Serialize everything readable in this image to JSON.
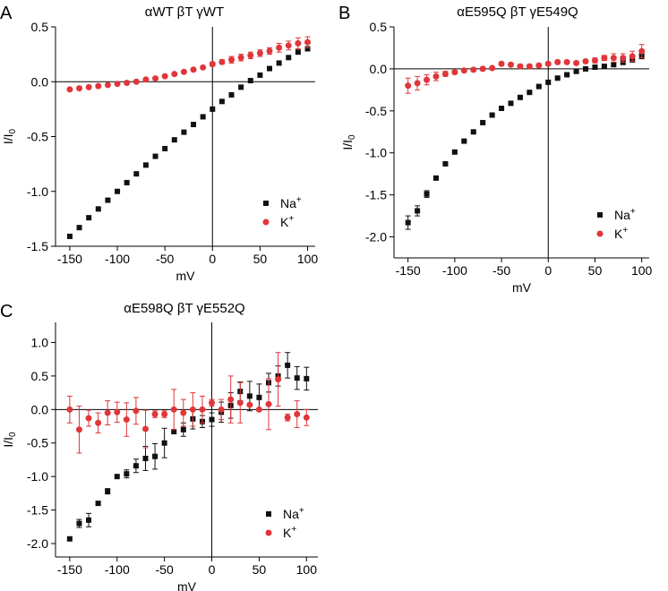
{
  "colors": {
    "na": "#111111",
    "k": "#e0363a",
    "axis": "#000000"
  },
  "chart_data": [
    {
      "panel_label": "A",
      "type": "scatter",
      "title": "αWT βT γWT",
      "xlabel": "mV",
      "ylabel_main": "I/I",
      "ylabel_sub": "0",
      "xlim": [
        -165,
        108
      ],
      "ylim": [
        -1.5,
        0.5
      ],
      "xticks": [
        -150,
        -100,
        -50,
        0,
        50,
        100
      ],
      "yticks": [
        -1.5,
        -1.0,
        -0.5,
        0.0,
        0.5
      ],
      "ytick_labels": [
        "-1.5",
        "-1.0",
        "-0.5",
        "0.0",
        "0.5"
      ],
      "legend_position": "bottom-right",
      "series": [
        {
          "name": "Na",
          "name_sup": "+",
          "marker": "square",
          "x": [
            -150,
            -140,
            -130,
            -120,
            -110,
            -100,
            -90,
            -80,
            -70,
            -60,
            -50,
            -40,
            -30,
            -20,
            -10,
            0,
            10,
            20,
            30,
            40,
            50,
            60,
            70,
            80,
            90,
            100
          ],
          "y": [
            -1.41,
            -1.33,
            -1.24,
            -1.16,
            -1.08,
            -1.0,
            -0.92,
            -0.84,
            -0.76,
            -0.68,
            -0.61,
            -0.53,
            -0.46,
            -0.39,
            -0.32,
            -0.25,
            -0.18,
            -0.12,
            -0.05,
            0.01,
            0.06,
            0.12,
            0.17,
            0.22,
            0.27,
            0.3
          ],
          "err": [
            0,
            0,
            0,
            0,
            0,
            0,
            0,
            0,
            0,
            0,
            0,
            0,
            0,
            0,
            0,
            0,
            0,
            0,
            0,
            0,
            0,
            0,
            0,
            0,
            0,
            0
          ]
        },
        {
          "name": "K",
          "name_sup": "+",
          "marker": "circle",
          "x": [
            -150,
            -140,
            -130,
            -120,
            -110,
            -100,
            -90,
            -80,
            -70,
            -60,
            -50,
            -40,
            -30,
            -20,
            -10,
            0,
            10,
            20,
            30,
            40,
            50,
            60,
            70,
            80,
            90,
            100
          ],
          "y": [
            -0.07,
            -0.06,
            -0.05,
            -0.04,
            -0.03,
            -0.02,
            -0.01,
            0.0,
            0.02,
            0.03,
            0.05,
            0.07,
            0.09,
            0.11,
            0.13,
            0.16,
            0.18,
            0.2,
            0.22,
            0.24,
            0.26,
            0.28,
            0.31,
            0.33,
            0.35,
            0.36
          ],
          "err": [
            0,
            0,
            0,
            0,
            0,
            0,
            0,
            0,
            0,
            0,
            0,
            0,
            0,
            0,
            0,
            0.02,
            0.02,
            0.03,
            0.03,
            0.03,
            0.03,
            0.03,
            0.04,
            0.04,
            0.05,
            0.05
          ]
        }
      ]
    },
    {
      "panel_label": "B",
      "type": "scatter",
      "title": "αE595Q βT γE549Q",
      "xlabel": "mV",
      "ylabel_main": "I/I",
      "ylabel_sub": "0",
      "xlim": [
        -165,
        108
      ],
      "ylim": [
        -2.25,
        0.5
      ],
      "xticks": [
        -150,
        -100,
        -50,
        0,
        50,
        100
      ],
      "yticks": [
        -2.0,
        -1.5,
        -1.0,
        -0.5,
        0.0,
        0.5
      ],
      "ytick_labels": [
        "-2.0",
        "-1.5",
        "-1.0",
        "-0.5",
        "0.0",
        "0.5"
      ],
      "legend_position": "bottom-right",
      "series": [
        {
          "name": "Na",
          "name_sup": "+",
          "marker": "square",
          "x": [
            -150,
            -140,
            -130,
            -120,
            -110,
            -100,
            -90,
            -80,
            -70,
            -60,
            -50,
            -40,
            -30,
            -20,
            -10,
            0,
            10,
            20,
            30,
            40,
            50,
            60,
            70,
            80,
            90,
            100
          ],
          "y": [
            -1.83,
            -1.69,
            -1.49,
            -1.3,
            -1.13,
            -0.99,
            -0.86,
            -0.75,
            -0.64,
            -0.55,
            -0.47,
            -0.41,
            -0.34,
            -0.28,
            -0.21,
            -0.16,
            -0.11,
            -0.07,
            -0.03,
            0.0,
            0.02,
            0.03,
            0.05,
            0.08,
            0.11,
            0.15
          ],
          "err": [
            0.08,
            0.06,
            0.04,
            0.02,
            0.01,
            0.01,
            0.01,
            0.01,
            0.01,
            0.01,
            0.01,
            0.01,
            0.01,
            0.01,
            0.01,
            0.02,
            0.01,
            0.01,
            0.01,
            0.01,
            0.01,
            0.01,
            0.02,
            0.03,
            0.03,
            0.03
          ]
        },
        {
          "name": "K",
          "name_sup": "+",
          "marker": "circle",
          "x": [
            -150,
            -140,
            -130,
            -120,
            -110,
            -100,
            -90,
            -80,
            -70,
            -60,
            -50,
            -40,
            -30,
            -20,
            -10,
            0,
            10,
            20,
            30,
            40,
            50,
            60,
            70,
            80,
            90,
            100
          ],
          "y": [
            -0.2,
            -0.17,
            -0.13,
            -0.09,
            -0.06,
            -0.04,
            -0.02,
            -0.01,
            0.0,
            0.01,
            0.06,
            0.05,
            0.03,
            0.03,
            0.04,
            0.06,
            0.08,
            0.08,
            0.07,
            0.09,
            0.1,
            0.13,
            0.13,
            0.13,
            0.15,
            0.21
          ],
          "err": [
            0.09,
            0.08,
            0.06,
            0.05,
            0.03,
            0.02,
            0.02,
            0.02,
            0.02,
            0.02,
            0.02,
            0.02,
            0.02,
            0.02,
            0.02,
            0.02,
            0.02,
            0.02,
            0.02,
            0.02,
            0.03,
            0.03,
            0.05,
            0.05,
            0.06,
            0.08
          ]
        }
      ]
    },
    {
      "panel_label": "C",
      "type": "scatter",
      "title": "αE598Q βT γE552Q",
      "xlabel": "mV",
      "ylabel_main": "I/I",
      "ylabel_sub": "0",
      "xlim": [
        -165,
        112
      ],
      "ylim": [
        -2.2,
        1.3
      ],
      "xticks": [
        -150,
        -100,
        -50,
        0,
        50,
        100
      ],
      "yticks": [
        -2.0,
        -1.5,
        -1.0,
        -0.5,
        0.0,
        0.5,
        1.0
      ],
      "ytick_labels": [
        "-2.0",
        "-1.5",
        "-1.0",
        "-0.5",
        "0.0",
        "0.5",
        "1.0"
      ],
      "legend_position": "bottom-right",
      "series": [
        {
          "name": "Na",
          "name_sup": "+",
          "marker": "square",
          "x": [
            -150,
            -140,
            -130,
            -120,
            -110,
            -100,
            -90,
            -80,
            -70,
            -60,
            -50,
            -40,
            -30,
            -20,
            -10,
            0,
            10,
            20,
            30,
            40,
            50,
            60,
            70,
            80,
            90,
            100
          ],
          "y": [
            -1.93,
            -1.7,
            -1.65,
            -1.4,
            -1.22,
            -1.0,
            -0.96,
            -0.84,
            -0.73,
            -0.7,
            -0.5,
            -0.33,
            -0.3,
            -0.14,
            -0.18,
            -0.15,
            -0.04,
            0.06,
            0.27,
            0.2,
            0.18,
            0.4,
            0.5,
            0.66,
            0.47,
            0.46
          ],
          "err": [
            0.0,
            0.06,
            0.1,
            0.03,
            0.04,
            0.0,
            0.06,
            0.1,
            0.18,
            0.19,
            0.22,
            0.0,
            0.1,
            0.15,
            0.09,
            0.1,
            0.15,
            0.19,
            0.14,
            0.22,
            0.2,
            0.14,
            0.15,
            0.19,
            0.17,
            0.17
          ]
        },
        {
          "name": "K",
          "name_sup": "+",
          "marker": "circle",
          "x": [
            -150,
            -140,
            -130,
            -120,
            -110,
            -100,
            -90,
            -80,
            -70,
            -60,
            -50,
            -40,
            -30,
            -20,
            -10,
            0,
            10,
            20,
            30,
            40,
            50,
            60,
            70,
            80,
            90,
            100
          ],
          "y": [
            0.0,
            -0.3,
            -0.13,
            -0.2,
            -0.05,
            -0.04,
            -0.15,
            -0.02,
            -0.29,
            -0.07,
            -0.07,
            0.0,
            -0.05,
            0.0,
            0.0,
            0.1,
            0.0,
            0.15,
            0.1,
            0.07,
            0.0,
            0.08,
            0.45,
            -0.12,
            -0.07,
            -0.12
          ],
          "err": [
            0.2,
            0.35,
            0.12,
            0.15,
            0.18,
            0.15,
            0.25,
            0.2,
            0.28,
            0.05,
            0.05,
            0.3,
            0.2,
            0.25,
            0.2,
            0.05,
            0.15,
            0.35,
            0.3,
            0.0,
            0.0,
            0.38,
            0.4,
            0.05,
            0.2,
            0.12
          ]
        }
      ]
    }
  ]
}
